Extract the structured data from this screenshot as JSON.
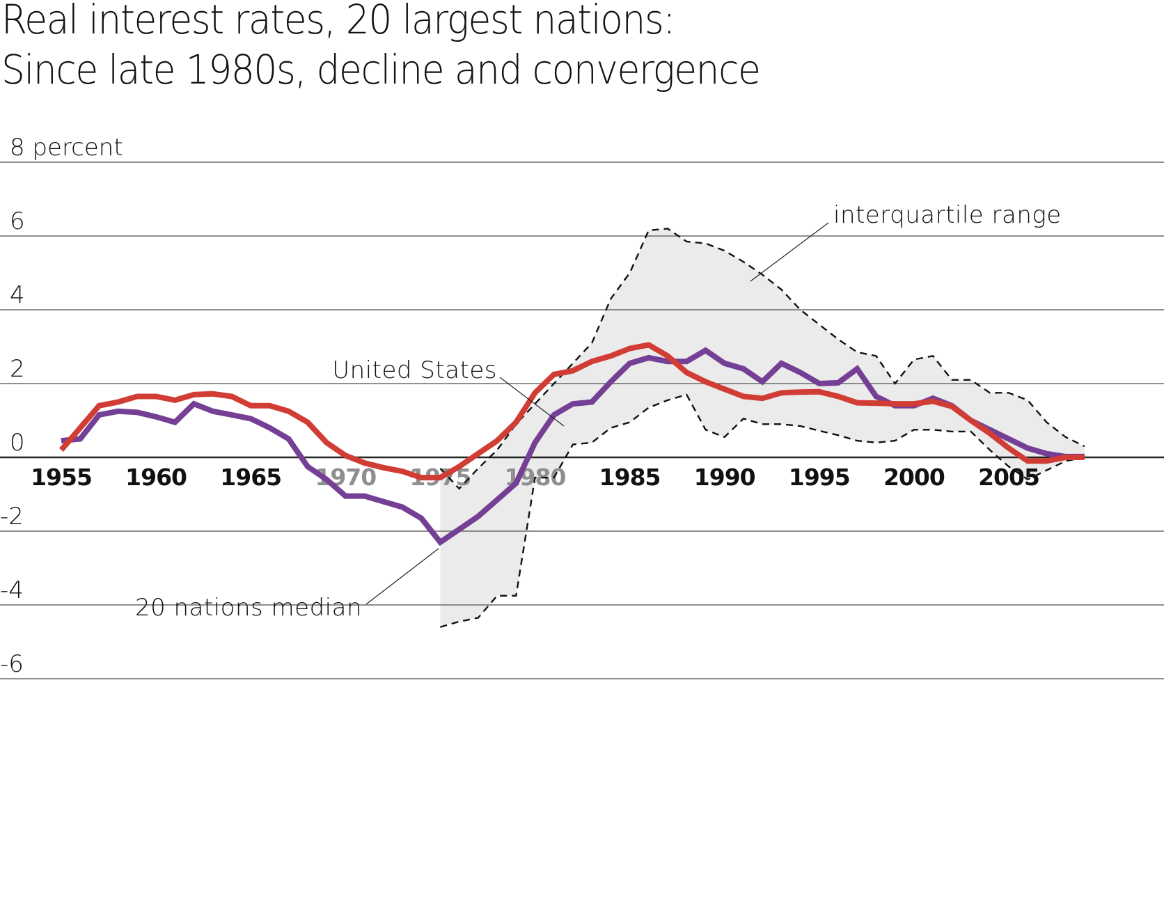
{
  "chart_data": {
    "type": "line",
    "title": "Real interest rates, 20 largest nations:",
    "subtitle": "Since late 1980s, decline and convergence",
    "ylabel": "percent",
    "ylim": [
      -6,
      8
    ],
    "yticks": [
      {
        "value": 8,
        "label": "8 percent"
      },
      {
        "value": 6,
        "label": "6"
      },
      {
        "value": 4,
        "label": "4"
      },
      {
        "value": 2,
        "label": "2"
      },
      {
        "value": 0,
        "label": "0"
      },
      {
        "value": -2,
        "label": "-2"
      },
      {
        "value": -4,
        "label": "-4"
      },
      {
        "value": -6,
        "label": "-6"
      }
    ],
    "xlim": [
      1955,
      2009
    ],
    "xticks": [
      {
        "value": 1955,
        "label": "1955",
        "muted": false
      },
      {
        "value": 1960,
        "label": "1960",
        "muted": false
      },
      {
        "value": 1965,
        "label": "1965",
        "muted": false
      },
      {
        "value": 1970,
        "label": "1970",
        "muted": true
      },
      {
        "value": 1975,
        "label": "1975",
        "muted": true
      },
      {
        "value": 1980,
        "label": "1980",
        "muted": true
      },
      {
        "value": 1985,
        "label": "1985",
        "muted": false
      },
      {
        "value": 1990,
        "label": "1990",
        "muted": false
      },
      {
        "value": 1995,
        "label": "1995",
        "muted": false
      },
      {
        "value": 2000,
        "label": "2000",
        "muted": false
      },
      {
        "value": 2005,
        "label": "2005",
        "muted": false
      }
    ],
    "grid": true,
    "series": [
      {
        "name": "20 nations median",
        "color": "#743f94",
        "x": [
          1955,
          1956,
          1957,
          1958,
          1959,
          1960,
          1961,
          1962,
          1963,
          1964,
          1965,
          1966,
          1967,
          1968,
          1969,
          1970,
          1971,
          1972,
          1973,
          1974,
          1975,
          1976,
          1977,
          1978,
          1979,
          1980,
          1981,
          1982,
          1983,
          1984,
          1985,
          1986,
          1987,
          1988,
          1989,
          1990,
          1991,
          1992,
          1993,
          1994,
          1995,
          1996,
          1997,
          1998,
          1999,
          2000,
          2001,
          2002,
          2003,
          2004,
          2005,
          2006,
          2007,
          2008,
          2009
        ],
        "values": [
          0.45,
          0.5,
          1.15,
          1.25,
          1.22,
          1.1,
          0.95,
          1.45,
          1.25,
          1.15,
          1.05,
          0.8,
          0.5,
          -0.25,
          -0.6,
          -1.05,
          -1.05,
          -1.2,
          -1.35,
          -1.65,
          -2.3,
          -1.95,
          -1.6,
          -1.15,
          -0.7,
          0.4,
          1.15,
          1.45,
          1.5,
          2.05,
          2.55,
          2.7,
          2.6,
          2.6,
          2.9,
          2.55,
          2.4,
          2.05,
          2.55,
          2.3,
          2.0,
          2.02,
          2.4,
          1.65,
          1.4,
          1.4,
          1.6,
          1.4,
          1.0,
          0.75,
          0.5,
          0.25,
          0.1,
          0.02,
          0.02
        ]
      },
      {
        "name": "United States",
        "color": "#d13d35",
        "x": [
          1955,
          1956,
          1957,
          1958,
          1959,
          1960,
          1961,
          1962,
          1963,
          1964,
          1965,
          1966,
          1967,
          1968,
          1969,
          1970,
          1971,
          1972,
          1973,
          1974,
          1975,
          1976,
          1977,
          1978,
          1979,
          1980,
          1981,
          1982,
          1983,
          1984,
          1985,
          1986,
          1987,
          1988,
          1989,
          1990,
          1991,
          1992,
          1993,
          1994,
          1995,
          1996,
          1997,
          1998,
          1999,
          2000,
          2001,
          2002,
          2003,
          2004,
          2005,
          2006,
          2007,
          2008,
          2009
        ],
        "values": [
          0.2,
          0.8,
          1.4,
          1.5,
          1.65,
          1.65,
          1.55,
          1.7,
          1.72,
          1.65,
          1.4,
          1.4,
          1.25,
          0.95,
          0.4,
          0.05,
          -0.15,
          -0.28,
          -0.38,
          -0.55,
          -0.55,
          -0.25,
          0.1,
          0.45,
          0.95,
          1.75,
          2.25,
          2.35,
          2.6,
          2.75,
          2.95,
          3.05,
          2.75,
          2.3,
          2.05,
          1.85,
          1.65,
          1.6,
          1.75,
          1.77,
          1.78,
          1.65,
          1.48,
          1.47,
          1.45,
          1.45,
          1.52,
          1.38,
          1.0,
          0.65,
          0.25,
          -0.1,
          -0.1,
          0.0,
          0.0
        ]
      }
    ],
    "band": {
      "name": "interquartile range",
      "fill": "#ebebeb",
      "x": [
        1975,
        1976,
        1977,
        1978,
        1979,
        1980,
        1981,
        1982,
        1983,
        1984,
        1985,
        1986,
        1987,
        1988,
        1989,
        1990,
        1991,
        1992,
        1993,
        1994,
        1995,
        1996,
        1997,
        1998,
        1999,
        2000,
        2001,
        2002,
        2003,
        2004,
        2005,
        2006,
        2007,
        2008,
        2009
      ],
      "upper": [
        -0.3,
        -0.85,
        -0.3,
        0.2,
        0.9,
        1.45,
        2.0,
        2.55,
        3.1,
        4.3,
        5.0,
        6.15,
        6.2,
        5.85,
        5.8,
        5.6,
        5.3,
        4.95,
        4.55,
        4.0,
        3.6,
        3.2,
        2.85,
        2.75,
        2.0,
        2.65,
        2.75,
        2.1,
        2.1,
        1.75,
        1.75,
        1.55,
        0.95,
        0.55,
        0.3
      ],
      "lower": [
        -4.6,
        -4.45,
        -4.35,
        -3.75,
        -3.75,
        -0.55,
        -0.55,
        0.35,
        0.4,
        0.8,
        0.95,
        1.35,
        1.55,
        1.7,
        0.75,
        0.55,
        1.05,
        0.9,
        0.9,
        0.85,
        0.72,
        0.6,
        0.45,
        0.4,
        0.45,
        0.75,
        0.75,
        0.7,
        0.7,
        0.2,
        -0.25,
        -0.6,
        -0.35,
        -0.1,
        0.0
      ]
    },
    "annotations": [
      {
        "text": "interquartile range",
        "points_to": "band",
        "year": 1990,
        "value": 5.2
      },
      {
        "text": "United States",
        "points_to": "United States",
        "year": 1979,
        "value": 1.6
      },
      {
        "text": "20 nations median",
        "points_to": "20 nations median",
        "year": 1974,
        "value": -1.5
      }
    ],
    "legend": "none (direct labels)"
  }
}
